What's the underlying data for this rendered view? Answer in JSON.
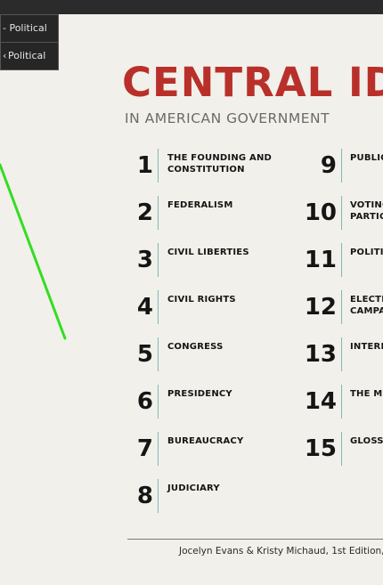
{
  "menu": {
    "items": [
      {
        "label": "- Political"
      },
      {
        "label": "Political"
      }
    ]
  },
  "header": {
    "title": "CENTRAL ID",
    "subtitle": "IN AMERICAN GOVERNMENT"
  },
  "chapters_left": [
    {
      "num": "1",
      "label": "THE FOUNDING AND CONSTITUTION"
    },
    {
      "num": "2",
      "label": "FEDERALISM"
    },
    {
      "num": "3",
      "label": "CIVIL LIBERTIES"
    },
    {
      "num": "4",
      "label": "CIVIL RIGHTS"
    },
    {
      "num": "5",
      "label": "CONGRESS"
    },
    {
      "num": "6",
      "label": "PRESIDENCY"
    },
    {
      "num": "7",
      "label": "BUREAUCRACY"
    },
    {
      "num": "8",
      "label": "JUDICIARY"
    }
  ],
  "chapters_right": [
    {
      "num": "9",
      "label": "PUBLIC"
    },
    {
      "num": "10",
      "label": "VOTING PARTIC"
    },
    {
      "num": "11",
      "label": "POLITI"
    },
    {
      "num": "12",
      "label": "ELECTI CAMPA"
    },
    {
      "num": "13",
      "label": "INTERE"
    },
    {
      "num": "14",
      "label": "THE MI"
    },
    {
      "num": "15",
      "label": "GLOSS."
    }
  ],
  "footer": {
    "credit": "Jocelyn Evans & Kristy Michaud, 1st Edition, Fal"
  },
  "colors": {
    "title": "#b9302a",
    "accent_bar": "#7fb8b8",
    "cursor": "#33dd22"
  }
}
